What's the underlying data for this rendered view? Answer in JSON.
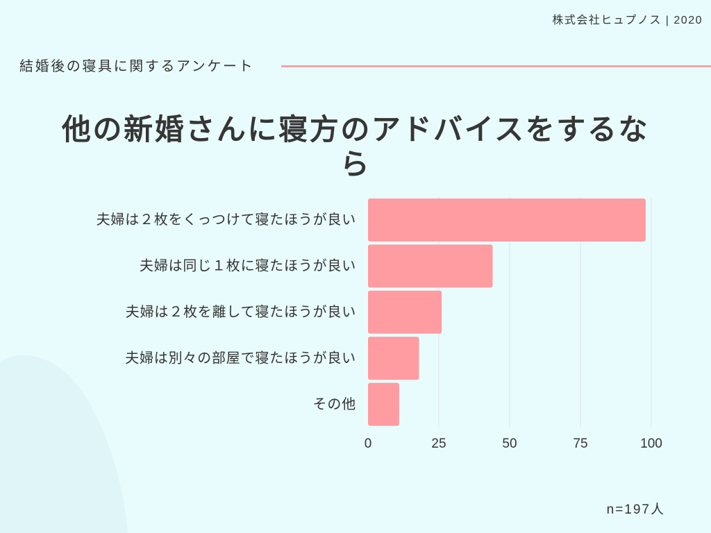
{
  "header": {
    "company": "株式会社ヒュプノス | 2020",
    "survey_title": "結婚後の寝具に関するアンケート"
  },
  "colors": {
    "background": "#e9fcfd",
    "blob": "#e0f5f7",
    "bar": "#ff9ca1",
    "accent_line": "#f2a4a8",
    "text": "#333333",
    "grid": "#dde5e6"
  },
  "chart_data": {
    "type": "bar",
    "orientation": "horizontal",
    "title": "他の新婚さんに寝方のアドバイスをするなら",
    "categories": [
      "夫婦は２枚をくっつけて寝たほうが良い",
      "夫婦は同じ１枚に寝たほうが良い",
      "夫婦は２枚を離して寝たほうが良い",
      "夫婦は別々の部屋で寝たほうが良い",
      "その他"
    ],
    "values": [
      98,
      44,
      26,
      18,
      11
    ],
    "xlim": [
      0,
      100
    ],
    "xticks": [
      0,
      25,
      50,
      75,
      100
    ],
    "grid": true
  },
  "footer": {
    "sample_size": "n=197人"
  }
}
